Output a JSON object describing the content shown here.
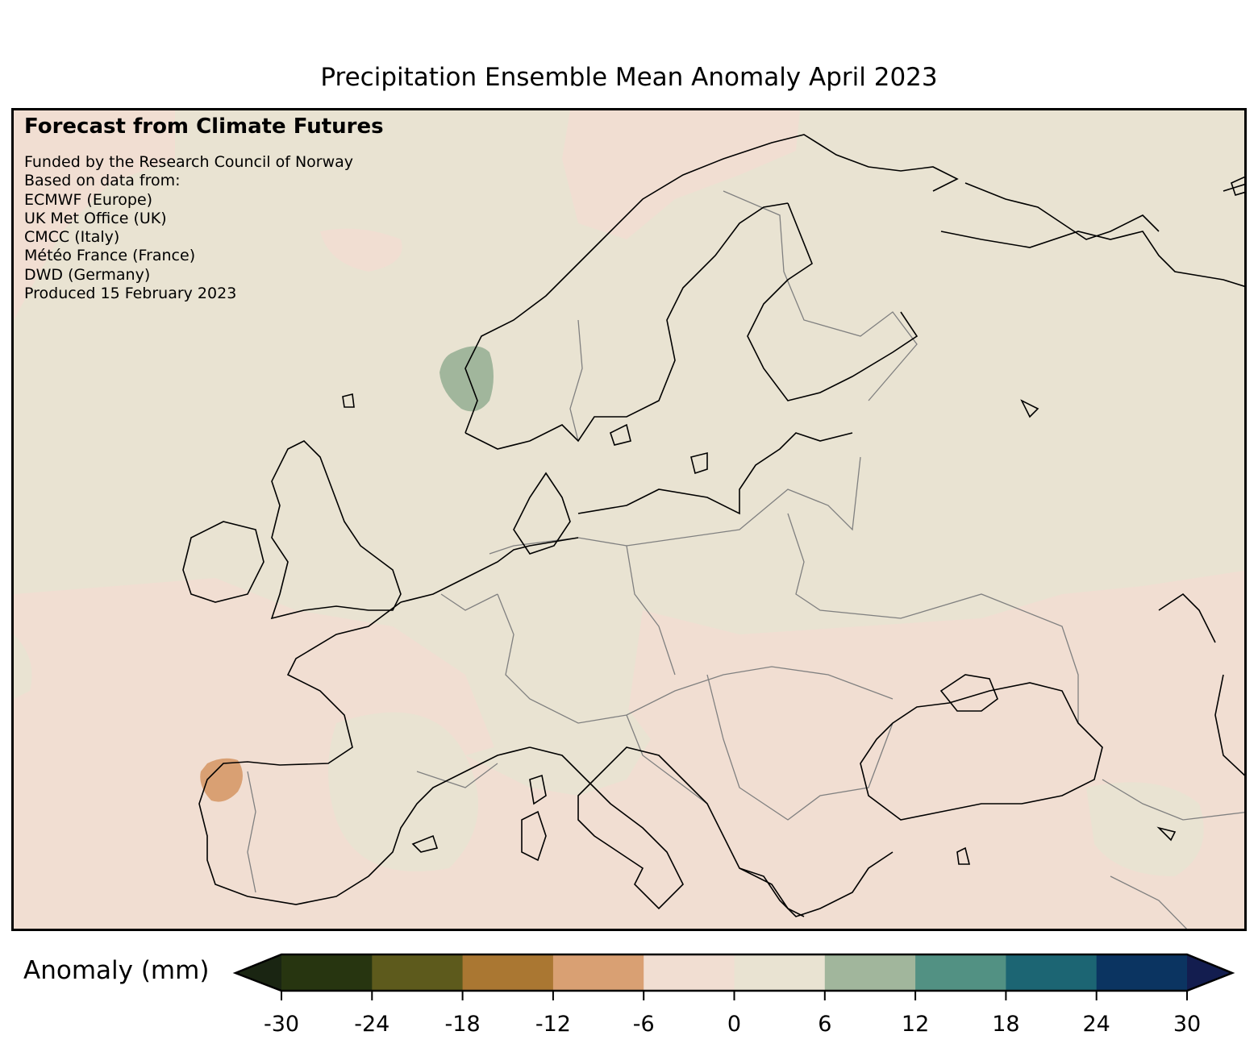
{
  "title": "Precipitation Ensemble Mean Anomaly April 2023",
  "credits": {
    "heading": "Forecast from Climate Futures",
    "lines": [
      "Funded by the Research Council of Norway",
      "Based on data from:",
      "ECMWF (Europe)",
      "UK Met Office (UK)",
      "CMCC (Italy)",
      "Météo France (France)",
      "DWD (Germany)",
      "Produced 15 February 2023"
    ]
  },
  "map": {
    "region": "Europe",
    "variable": "precipitation anomaly",
    "background_color": "#e9e3d2",
    "coastline_color": "#000000",
    "border_color": "#808080"
  },
  "colorbar": {
    "label": "Anomaly (mm)",
    "ticks": [
      "-30",
      "-24",
      "-18",
      "-12",
      "-6",
      "0",
      "6",
      "12",
      "18",
      "24",
      "30"
    ],
    "colors": [
      "#273510",
      "#5d5a1c",
      "#aa7732",
      "#d9a073",
      "#f1ded2",
      "#e9e3d2",
      "#a1b69c",
      "#529183",
      "#1c6573",
      "#0b3461"
    ],
    "extend_low_color": "#1a2512",
    "extend_high_color": "#131d4f",
    "extend": "both"
  }
}
